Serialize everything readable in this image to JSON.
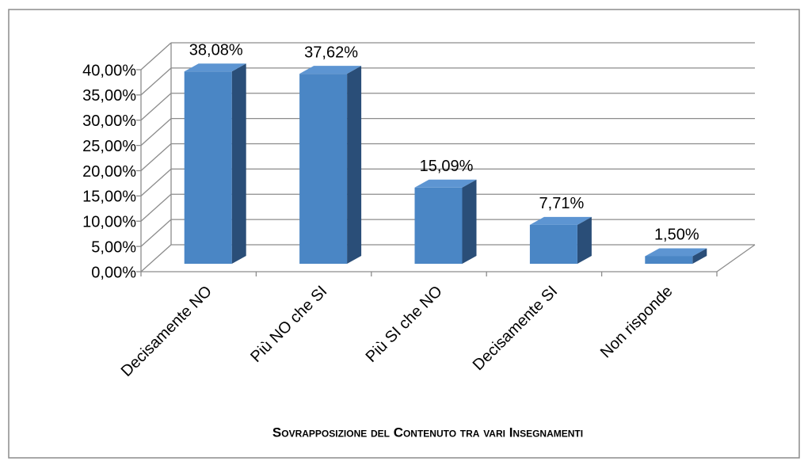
{
  "chart_data": {
    "type": "bar3d",
    "categories": [
      "Decisamente NO",
      "Più NO che SI",
      "Più SI che NO",
      "Decisamente SI",
      "Non risponde"
    ],
    "values": [
      38.08,
      37.62,
      15.09,
      7.71,
      1.5
    ],
    "value_labels": [
      "38,08%",
      "37,62%",
      "15,09%",
      "7,71%",
      "1,50%"
    ],
    "color": "#4a86c5",
    "ylim": [
      0,
      40
    ],
    "yticks": [
      {
        "value": 0,
        "label": "0,00%"
      },
      {
        "value": 5,
        "label": "5,00%"
      },
      {
        "value": 10,
        "label": "10,00%"
      },
      {
        "value": 15,
        "label": "15,00%"
      },
      {
        "value": 20,
        "label": "20,00%"
      },
      {
        "value": 25,
        "label": "25,00%"
      },
      {
        "value": 30,
        "label": "30,00%"
      },
      {
        "value": 35,
        "label": "35,00%"
      },
      {
        "value": 40,
        "label": "40,00%"
      }
    ],
    "grid": true,
    "x_label": "Sovrapposizione del Contenuto tra vari Insegnamenti"
  }
}
